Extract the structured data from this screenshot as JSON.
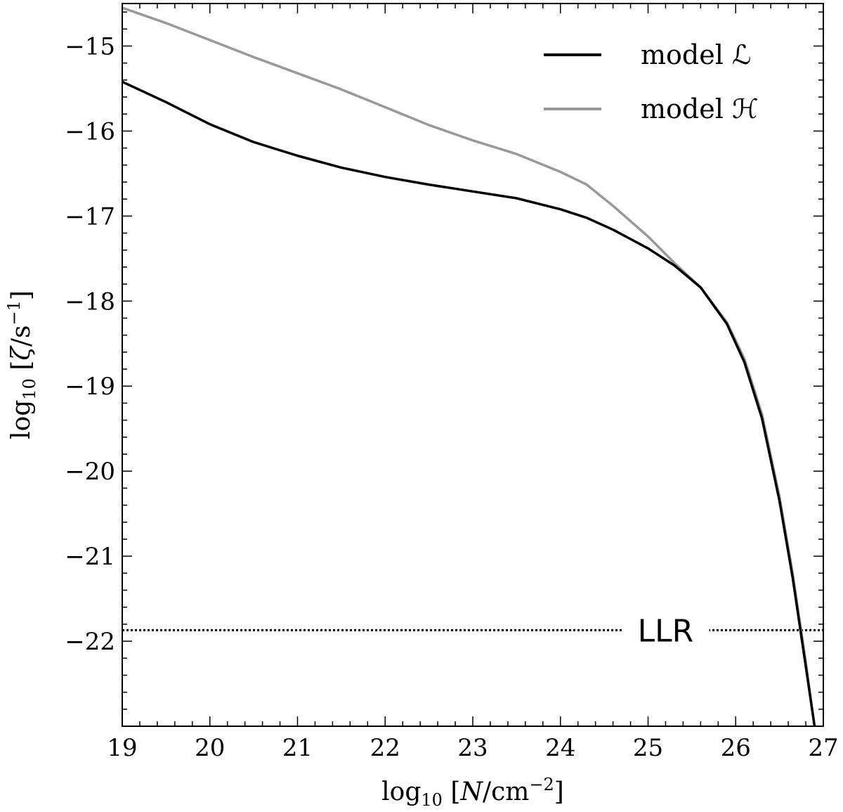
{
  "chart_data": {
    "type": "line",
    "title": "",
    "xlabel": "log₁₀ [N/cm⁻²]",
    "ylabel": "log₁₀ [ζ/s⁻¹]",
    "xlim": [
      19,
      27
    ],
    "ylim": [
      -23,
      -14.5
    ],
    "xticks": [
      19,
      20,
      21,
      22,
      23,
      24,
      25,
      26,
      27
    ],
    "xtick_labels": [
      "19",
      "20",
      "21",
      "22",
      "23",
      "24",
      "25",
      "26",
      "27"
    ],
    "yticks": [
      -15,
      -16,
      -17,
      -18,
      -19,
      -20,
      -21,
      -22
    ],
    "ytick_labels": [
      "−15",
      "−16",
      "−17",
      "−18",
      "−19",
      "−20",
      "−21",
      "−22"
    ],
    "grid": false,
    "legend_position": "top-right",
    "series": [
      {
        "name": "model ℒ",
        "color": "#000000",
        "x": [
          19,
          19.5,
          20,
          20.5,
          21,
          21.5,
          22,
          22.5,
          23,
          23.5,
          24,
          24.3,
          24.6,
          25,
          25.3,
          25.6,
          25.9,
          26.1,
          26.3,
          26.5,
          26.65,
          26.8,
          26.9
        ],
        "y": [
          -15.42,
          -15.66,
          -15.92,
          -16.13,
          -16.29,
          -16.43,
          -16.54,
          -16.63,
          -16.71,
          -16.79,
          -16.92,
          -17.02,
          -17.16,
          -17.38,
          -17.58,
          -17.84,
          -18.27,
          -18.72,
          -19.38,
          -20.35,
          -21.25,
          -22.3,
          -23.0
        ]
      },
      {
        "name": "model ℋ",
        "color": "#999999",
        "x": [
          19,
          19.5,
          20,
          20.5,
          21,
          21.5,
          22,
          22.5,
          23,
          23.5,
          24,
          24.3,
          24.6,
          25,
          25.3,
          25.6,
          25.9,
          26.1,
          26.3,
          26.5,
          26.65,
          26.8,
          26.9
        ],
        "y": [
          -14.55,
          -14.73,
          -14.93,
          -15.13,
          -15.32,
          -15.51,
          -15.72,
          -15.93,
          -16.11,
          -16.27,
          -16.48,
          -16.63,
          -16.88,
          -17.24,
          -17.55,
          -17.84,
          -18.25,
          -18.68,
          -19.33,
          -20.3,
          -21.2,
          -22.25,
          -23.0
        ]
      }
    ],
    "annotations": [
      {
        "type": "hline",
        "y": -21.87,
        "label": "LLR",
        "label_x": 25.2,
        "style": "dotted"
      }
    ]
  }
}
